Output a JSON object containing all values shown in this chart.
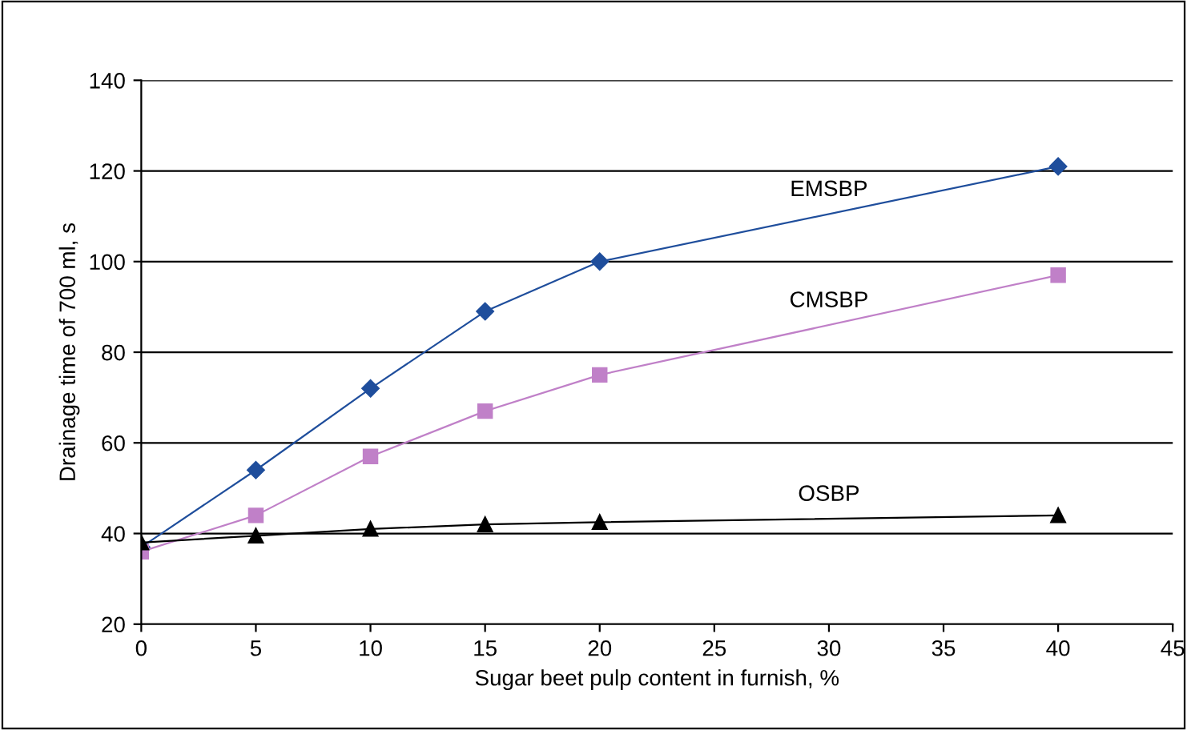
{
  "chart_data": {
    "type": "line",
    "xlabel": "Sugar beet pulp content in furnish, %",
    "ylabel": "Drainage time of 700 ml, s",
    "x": [
      0,
      5,
      10,
      15,
      20,
      40
    ],
    "series": [
      {
        "name": "EMSBP",
        "color": "#1f4e9c",
        "marker": "diamond",
        "values": [
          37,
          54,
          72,
          89,
          100,
          121
        ]
      },
      {
        "name": "CMSBP",
        "color": "#c080c8",
        "marker": "square",
        "values": [
          36,
          44,
          57,
          67,
          75,
          97
        ]
      },
      {
        "name": "OSBP",
        "color": "#000000",
        "marker": "triangle",
        "values": [
          38,
          39.5,
          41,
          42,
          42.5,
          44
        ]
      }
    ],
    "xlim": [
      0,
      45
    ],
    "xticks": [
      0,
      5,
      10,
      15,
      20,
      25,
      30,
      35,
      40,
      45
    ],
    "ylim": [
      20,
      140
    ],
    "yticks": [
      20,
      40,
      60,
      80,
      100,
      120,
      140
    ],
    "grid": "y",
    "legend": false,
    "line_style": "solid"
  }
}
